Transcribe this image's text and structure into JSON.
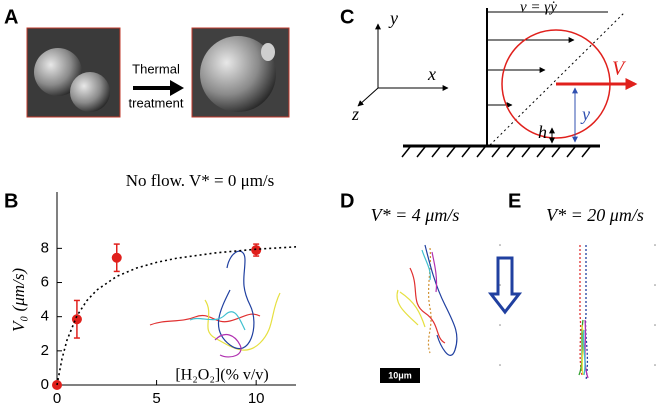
{
  "panel_labels": [
    "A",
    "B",
    "C",
    "D",
    "E"
  ],
  "panel_a": {
    "arrow_text_1": "Thermal",
    "arrow_text_2": "treatment"
  },
  "panel_c": {
    "axis_y": "y",
    "axis_x": "x",
    "axis_z": "z",
    "flow": "v = γ̇y",
    "velocity": "V",
    "height": "h",
    "distance": "y"
  },
  "panel_d": {
    "title": "V* = 4 μm/s",
    "scale_bar": "10μm"
  },
  "panel_e": {
    "title": "V* = 20 μm/s"
  },
  "chart_data": {
    "type": "scatter",
    "title": "No flow. V* = 0 μm/s",
    "x_label": "[H₂O₂](% v/v)",
    "y_label": "V₀ (μm/s)",
    "series": [
      {
        "type": "scatter",
        "color": "#e0201c",
        "x": [
          0,
          1,
          3,
          10
        ],
        "values": [
          0,
          3.85,
          7.45,
          7.9
        ],
        "errors": [
          0,
          1.1,
          0.8,
          0.35
        ]
      },
      {
        "type": "line",
        "color": "#000000",
        "style": "dotted",
        "x": [
          0,
          0.25,
          0.5,
          1,
          1.5,
          2,
          3,
          4,
          5,
          6,
          8,
          10,
          12
        ],
        "values": [
          0,
          1.53,
          2.62,
          4.05,
          4.94,
          5.56,
          6.36,
          6.85,
          7.18,
          7.42,
          7.74,
          7.95,
          8.09
        ]
      }
    ],
    "xlim": [
      0,
      12
    ],
    "ylim": [
      0,
      11.3
    ],
    "xticks": [
      0,
      5,
      10
    ],
    "yticks": [
      0,
      2,
      4,
      6,
      8
    ]
  }
}
